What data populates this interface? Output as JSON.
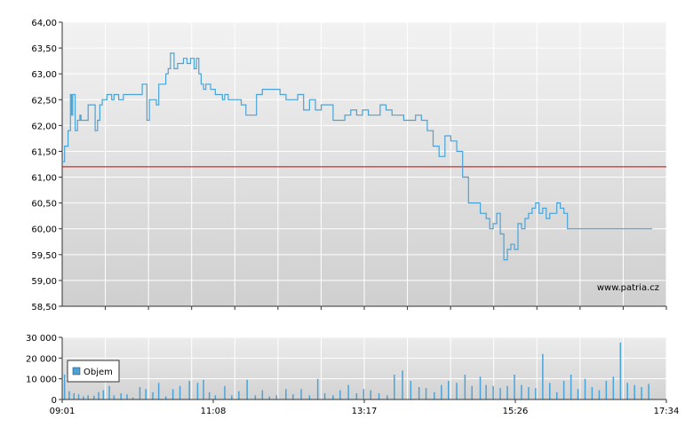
{
  "chart_data": [
    {
      "type": "line",
      "xlabel": "",
      "ylabel": "",
      "ylim": [
        58.5,
        64.0
      ],
      "yticks": [
        "64,00",
        "63,50",
        "63,00",
        "62,50",
        "62,00",
        "61,50",
        "61,00",
        "60,50",
        "60,00",
        "59,50",
        "59,00",
        "58,50"
      ],
      "ytick_values": [
        64.0,
        63.5,
        63.0,
        62.5,
        62.0,
        61.5,
        61.0,
        60.5,
        60.0,
        59.5,
        59.0,
        58.5
      ],
      "reference_line": {
        "value": 61.2,
        "color": "#cc0000"
      },
      "series": [
        {
          "color": "#4aa3d6",
          "x_minutes": [
            0,
            2,
            4,
            5,
            7,
            8,
            9,
            11,
            13,
            15,
            16,
            18,
            20,
            22,
            24,
            26,
            28,
            30,
            32,
            34,
            36,
            38,
            40,
            42,
            44,
            46,
            48,
            52,
            56,
            60,
            64,
            68,
            72,
            74,
            76,
            78,
            80,
            82,
            84,
            86,
            88,
            90,
            92,
            95,
            98,
            100,
            103,
            106,
            109,
            112,
            114,
            116,
            118,
            120,
            122,
            124,
            126,
            128,
            130,
            133,
            136,
            138,
            141,
            144,
            148,
            152,
            156,
            160,
            165,
            170,
            175,
            180,
            185,
            190,
            195,
            200,
            205,
            210,
            215,
            220,
            225,
            230,
            235,
            240,
            245,
            250,
            255,
            260,
            265,
            270,
            275,
            280,
            285,
            290,
            295,
            300,
            305,
            310,
            315,
            320,
            325,
            330,
            335,
            340,
            345,
            350,
            355,
            360,
            363,
            366,
            369,
            372,
            375,
            378,
            381,
            384,
            387,
            390,
            393,
            396,
            399,
            402,
            405,
            408,
            411,
            414,
            417,
            420,
            423,
            426,
            429,
            432,
            435,
            438,
            441,
            444,
            447,
            450,
            453,
            456,
            459,
            462,
            465,
            468,
            471,
            474,
            477,
            480,
            483,
            486,
            489,
            492,
            495,
            498,
            501
          ],
          "values": [
            61.3,
            61.6,
            61.6,
            61.9,
            62.6,
            62.2,
            62.6,
            61.9,
            62.1,
            62.2,
            62.1,
            62.1,
            62.1,
            62.4,
            62.4,
            62.4,
            61.9,
            62.1,
            62.4,
            62.5,
            62.5,
            62.6,
            62.6,
            62.5,
            62.6,
            62.6,
            62.5,
            62.6,
            62.6,
            62.6,
            62.6,
            62.8,
            62.1,
            62.5,
            62.5,
            62.5,
            62.4,
            62.8,
            62.8,
            62.8,
            63.0,
            63.1,
            63.4,
            63.1,
            63.2,
            63.2,
            63.3,
            63.2,
            63.3,
            63.1,
            63.3,
            63.0,
            62.8,
            62.7,
            62.8,
            62.8,
            62.7,
            62.7,
            62.6,
            62.6,
            62.5,
            62.6,
            62.5,
            62.5,
            62.5,
            62.4,
            62.2,
            62.2,
            62.6,
            62.7,
            62.7,
            62.7,
            62.6,
            62.5,
            62.5,
            62.6,
            62.3,
            62.5,
            62.3,
            62.4,
            62.4,
            62.1,
            62.1,
            62.2,
            62.3,
            62.2,
            62.3,
            62.2,
            62.2,
            62.4,
            62.3,
            62.2,
            62.2,
            62.1,
            62.1,
            62.2,
            62.1,
            61.9,
            61.6,
            61.4,
            61.8,
            61.7,
            61.5,
            61.0,
            60.5,
            60.5,
            60.3,
            60.2,
            60.0,
            60.1,
            60.3,
            59.9,
            59.4,
            59.6,
            59.7,
            59.6,
            60.1,
            60.0,
            60.2,
            60.3,
            60.4,
            60.5,
            60.3,
            60.4,
            60.2,
            60.3,
            60.3,
            60.5,
            60.4,
            60.3,
            60.0,
            60.0,
            60.0,
            60.0,
            60.0,
            60.0,
            60.0,
            60.0,
            60.0,
            60.0,
            60.0,
            60.0,
            60.0,
            60.0,
            60.0,
            60.0,
            60.0,
            60.0,
            60.0,
            60.0,
            60.0,
            60.0,
            60.0,
            60.0,
            60.0
          ]
        }
      ],
      "credit": "www.patria.cz"
    },
    {
      "type": "bar",
      "ylim": [
        0,
        30000
      ],
      "yticks": [
        "30 000",
        "20 000",
        "10 000",
        "0"
      ],
      "ytick_values": [
        30000,
        20000,
        10000,
        0
      ],
      "xticks": [
        "09:01",
        "11:08",
        "13:17",
        "15:26",
        "17:34"
      ],
      "legend": "Objem",
      "bar_color": "#4aa3d6",
      "series": [
        {
          "name": "Objem",
          "x_minutes": [
            2,
            6,
            10,
            14,
            18,
            22,
            27,
            31,
            35,
            40,
            44,
            50,
            55,
            60,
            66,
            71,
            77,
            82,
            88,
            94,
            100,
            108,
            115,
            120,
            125,
            130,
            138,
            144,
            150,
            157,
            164,
            170,
            176,
            182,
            190,
            196,
            203,
            210,
            217,
            223,
            230,
            236,
            243,
            250,
            256,
            262,
            269,
            276,
            282,
            289,
            296,
            303,
            309,
            316,
            322,
            328,
            335,
            342,
            348,
            355,
            360,
            366,
            372,
            378,
            384,
            390,
            396,
            402,
            408,
            414,
            420,
            426,
            432,
            438,
            444,
            450,
            456,
            462,
            468,
            474,
            480,
            486,
            492,
            498
          ],
          "values": [
            12000,
            4000,
            3000,
            2500,
            1500,
            2000,
            1800,
            3500,
            4500,
            6500,
            2000,
            3000,
            2500,
            1000,
            6000,
            5000,
            3500,
            8000,
            1500,
            5000,
            6500,
            9000,
            8000,
            9500,
            3500,
            2000,
            6500,
            2000,
            4000,
            9500,
            2000,
            4500,
            1500,
            2000,
            5000,
            2500,
            5000,
            2000,
            10000,
            3000,
            2000,
            4500,
            7000,
            3000,
            5000,
            4500,
            3000,
            2000,
            12000,
            14000,
            9000,
            6000,
            5500,
            3500,
            7000,
            9000,
            8000,
            12000,
            6500,
            11000,
            7000,
            6500,
            5500,
            6500,
            12000,
            7000,
            6000,
            5500,
            22000,
            8000,
            3500,
            9000,
            12000,
            5000,
            10000,
            6000,
            4500,
            9000,
            11000,
            27500,
            8000,
            7000,
            6000,
            7500
          ]
        }
      ]
    }
  ]
}
